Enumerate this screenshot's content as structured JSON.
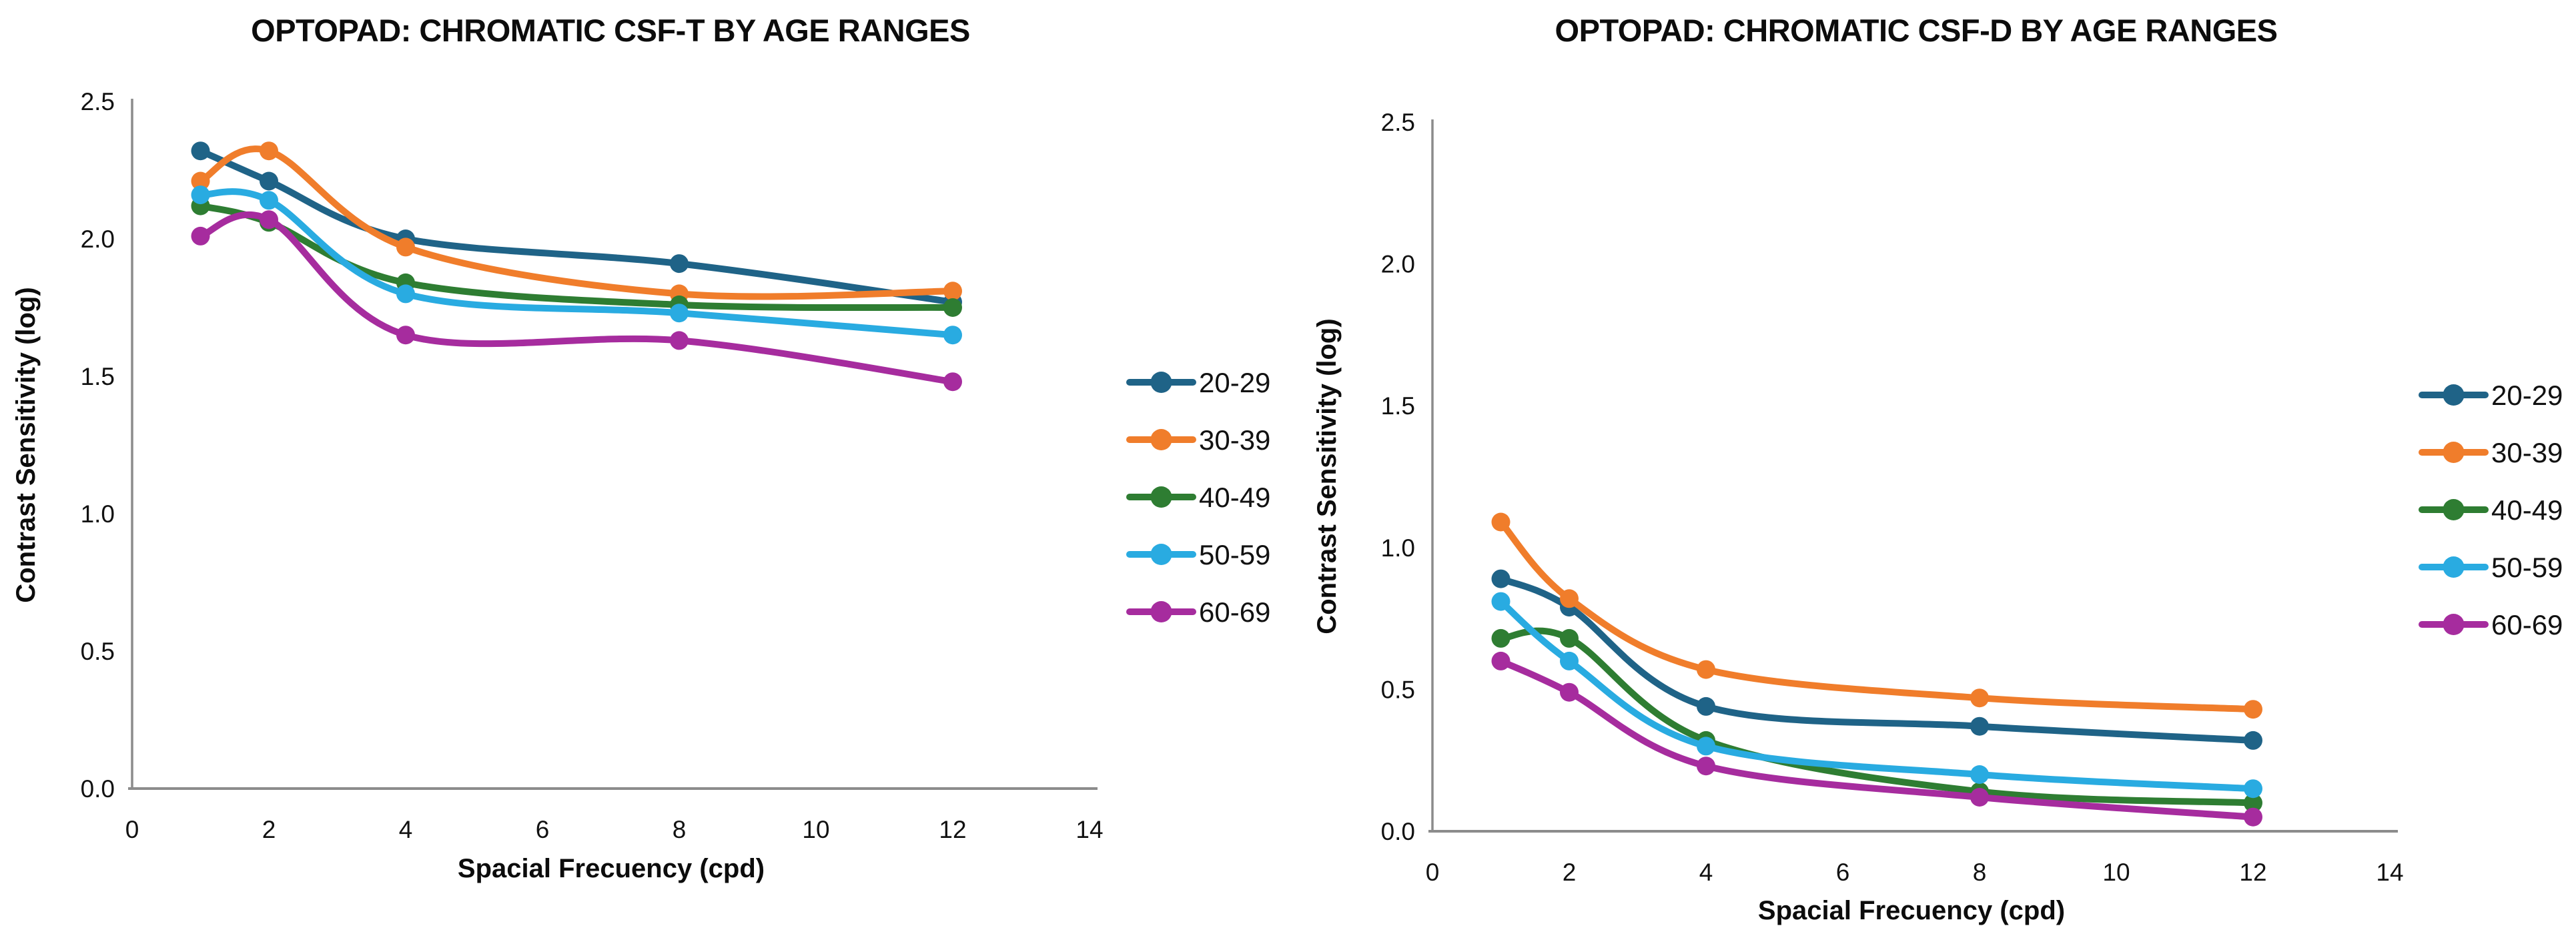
{
  "page": {
    "background": "#ffffff",
    "axis_color": "#8C8C8C",
    "text_color": "#111111"
  },
  "legend": {
    "labels": [
      "20-29",
      "30-39",
      "40-49",
      "50-59",
      "60-69"
    ]
  },
  "series_colors": {
    "age_20_29": "#1F6387",
    "age_30_39": "#F07D2B",
    "age_40_49": "#2E7D32",
    "age_50_59": "#29ABE1",
    "age_60_69": "#A62C9E"
  },
  "chart_data": [
    {
      "type": "line",
      "title": "OPTOPAD: CHROMATIC CSF-T BY AGE RANGES",
      "xlabel": "Spacial Frecuency (cpd)",
      "ylabel": "Contrast Sensitivity (log)",
      "x": [
        1,
        2,
        4,
        8,
        12
      ],
      "xlim": [
        0,
        14
      ],
      "ylim": [
        0,
        2.5
      ],
      "x_tick_labels": [
        "0",
        "2",
        "4",
        "6",
        "8",
        "10",
        "12",
        "14"
      ],
      "y_tick_labels": [
        "0.0",
        "0.5",
        "1.0",
        "1.5",
        "2.0",
        "2.5"
      ],
      "grid": false,
      "smooth": true,
      "marker": "circle",
      "legend_position": "right",
      "series": [
        {
          "name": "20-29",
          "color": "#1F6387",
          "values": [
            2.32,
            2.21,
            2.0,
            1.91,
            1.77
          ]
        },
        {
          "name": "30-39",
          "color": "#F07D2B",
          "values": [
            2.21,
            2.32,
            1.97,
            1.8,
            1.81
          ]
        },
        {
          "name": "40-49",
          "color": "#2E7D32",
          "values": [
            2.12,
            2.06,
            1.84,
            1.76,
            1.75
          ]
        },
        {
          "name": "50-59",
          "color": "#29ABE1",
          "values": [
            2.16,
            2.14,
            1.8,
            1.73,
            1.65
          ]
        },
        {
          "name": "60-69",
          "color": "#A62C9E",
          "values": [
            2.01,
            2.07,
            1.65,
            1.63,
            1.48
          ]
        }
      ]
    },
    {
      "type": "line",
      "title": "OPTOPAD: CHROMATIC CSF-D BY AGE RANGES",
      "xlabel": "Spacial Frecuency (cpd)",
      "ylabel": "Contrast Sensitivity (log)",
      "x": [
        1,
        2,
        4,
        8,
        12
      ],
      "xlim": [
        0,
        14
      ],
      "ylim": [
        0,
        2.5
      ],
      "x_tick_labels": [
        "0",
        "2",
        "4",
        "6",
        "8",
        "10",
        "12",
        "14"
      ],
      "y_tick_labels": [
        "0.0",
        "0.5",
        "1.0",
        "1.5",
        "2.0",
        "2.5"
      ],
      "grid": false,
      "smooth": true,
      "marker": "circle",
      "legend_position": "right",
      "series": [
        {
          "name": "20-29",
          "color": "#1F6387",
          "values": [
            0.89,
            0.79,
            0.44,
            0.37,
            0.32
          ]
        },
        {
          "name": "30-39",
          "color": "#F07D2B",
          "values": [
            1.09,
            0.82,
            0.57,
            0.47,
            0.43
          ]
        },
        {
          "name": "40-49",
          "color": "#2E7D32",
          "values": [
            0.68,
            0.68,
            0.32,
            0.14,
            0.1
          ]
        },
        {
          "name": "50-59",
          "color": "#29ABE1",
          "values": [
            0.81,
            0.6,
            0.3,
            0.2,
            0.15
          ]
        },
        {
          "name": "60-69",
          "color": "#A62C9E",
          "values": [
            0.6,
            0.49,
            0.23,
            0.12,
            0.05
          ]
        }
      ]
    }
  ]
}
